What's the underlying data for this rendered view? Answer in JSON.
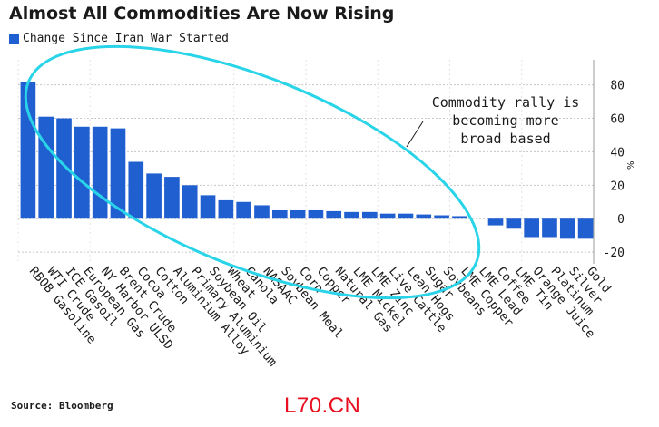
{
  "chart_data": {
    "type": "bar",
    "title": "Almost All Commodities Are Now Rising",
    "legend": "Change Since Iran War Started",
    "y_unit": "%",
    "ylim": [
      -27,
      95
    ],
    "yticks": [
      -20,
      0,
      20,
      40,
      60,
      80
    ],
    "grid": true,
    "categories": [
      "RBOB Gasoline",
      "WTI Crude",
      "ICE Gasoil",
      "European Gas",
      "NY Harbor ULSD",
      "Brent Crude",
      "Cocoa",
      "Cotton",
      "Aluminium Alloy",
      "Primary Aluminium",
      "Soybean Oil",
      "Wheat",
      "Canola",
      "NASAAC",
      "Soybean Meal",
      "Corn",
      "Copper",
      "Natural Gas",
      "LME Nickel",
      "LME Zinc",
      "Live Cattle",
      "Lean Hogs",
      "Sugar",
      "Soybeans",
      "LME Copper",
      "LME Lead",
      "Coffee",
      "LME Tin",
      "Orange Juice",
      "Platinum",
      "Silver",
      "Gold"
    ],
    "series": [
      {
        "values": [
          82,
          61,
          60,
          55,
          55,
          54,
          34,
          27,
          25,
          20,
          14,
          11,
          10,
          8,
          5,
          5,
          5,
          4.5,
          4,
          4,
          3,
          3,
          2.5,
          2,
          1.5,
          0,
          -4,
          -6,
          -11,
          -11,
          -12,
          -12
        ]
      }
    ],
    "annotation": {
      "lines": [
        "Commodity rally is",
        "becoming more",
        "broad based"
      ]
    }
  },
  "colors": {
    "bar": "#1f5fd0",
    "highlight": "#2ad4e8",
    "grid": "#c8c8c8",
    "text": "#1a1a1a"
  },
  "source": "Source: Bloomberg",
  "watermark": "L70.CN"
}
